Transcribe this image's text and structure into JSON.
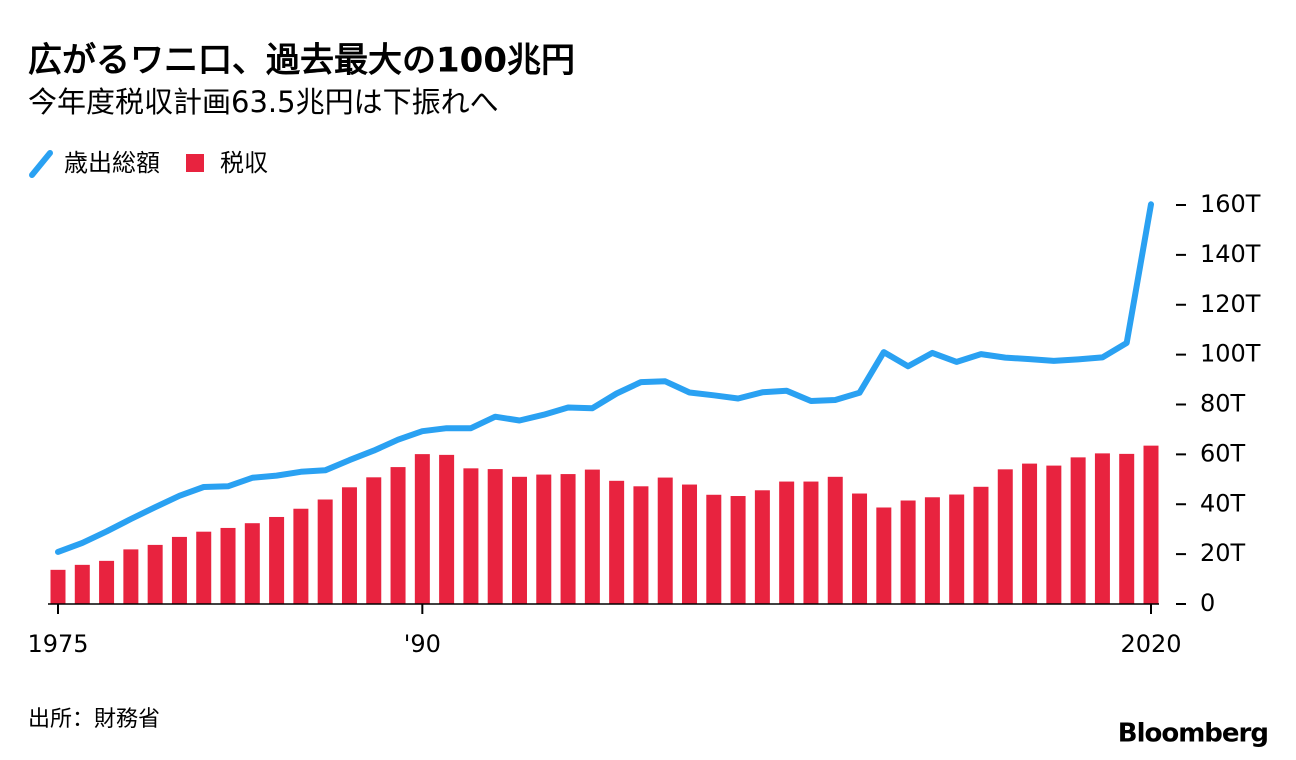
{
  "chart_data": {
    "type": "combo",
    "title": "広がるワニ口、過去最大の100兆円",
    "subtitle": "今年度税収計画63.5兆円は下振れへ",
    "categories": [
      "1975",
      null,
      null,
      null,
      null,
      null,
      null,
      null,
      null,
      null,
      null,
      null,
      null,
      null,
      null,
      "'90",
      null,
      null,
      null,
      null,
      null,
      null,
      null,
      null,
      null,
      null,
      null,
      null,
      null,
      null,
      null,
      null,
      null,
      null,
      null,
      null,
      null,
      null,
      null,
      null,
      null,
      null,
      null,
      null,
      null,
      "2020"
    ],
    "series": [
      {
        "name": "歳出総額",
        "type": "line",
        "color": "#2aa1f2",
        "values": [
          20.9,
          24.5,
          29.1,
          34.1,
          38.8,
          43.4,
          46.9,
          47.2,
          50.6,
          51.5,
          53.0,
          53.6,
          57.7,
          61.5,
          65.9,
          69.3,
          70.5,
          70.5,
          75.1,
          73.6,
          75.9,
          78.8,
          78.5,
          84.4,
          89.0,
          89.3,
          84.8,
          83.7,
          82.4,
          84.9,
          85.5,
          81.4,
          81.8,
          84.7,
          101.0,
          95.3,
          100.7,
          97.1,
          100.2,
          98.8,
          98.2,
          97.5,
          98.1,
          98.9,
          104.7,
          160.3
        ]
      },
      {
        "name": "税収",
        "type": "bar",
        "color": "#e8233f",
        "values": [
          13.7,
          15.7,
          17.3,
          21.9,
          23.7,
          26.9,
          29.0,
          30.5,
          32.4,
          34.9,
          38.2,
          41.9,
          46.8,
          50.8,
          54.9,
          60.1,
          59.8,
          54.4,
          54.1,
          51.0,
          51.9,
          52.1,
          53.9,
          49.4,
          47.2,
          50.7,
          47.9,
          43.8,
          43.3,
          45.6,
          49.1,
          49.1,
          51.0,
          44.3,
          38.7,
          41.5,
          42.8,
          43.9,
          47.0,
          54.0,
          56.3,
          55.5,
          58.8,
          60.4,
          60.2,
          63.5
        ]
      }
    ],
    "ylim": [
      0,
      160
    ],
    "yticks": [
      0,
      {
        "value": 20,
        "label": "20T"
      },
      {
        "value": 40,
        "label": "40T"
      },
      {
        "value": 60,
        "label": "60T"
      },
      {
        "value": 80,
        "label": "80T"
      },
      {
        "value": 100,
        "label": "100T"
      },
      {
        "value": 120,
        "label": "120T"
      },
      {
        "value": 140,
        "label": "140T"
      },
      {
        "value": 160,
        "label": "160T"
      }
    ],
    "grid": false,
    "legend": "top-left",
    "source": "出所：財務省",
    "logo": "Bloomberg"
  }
}
